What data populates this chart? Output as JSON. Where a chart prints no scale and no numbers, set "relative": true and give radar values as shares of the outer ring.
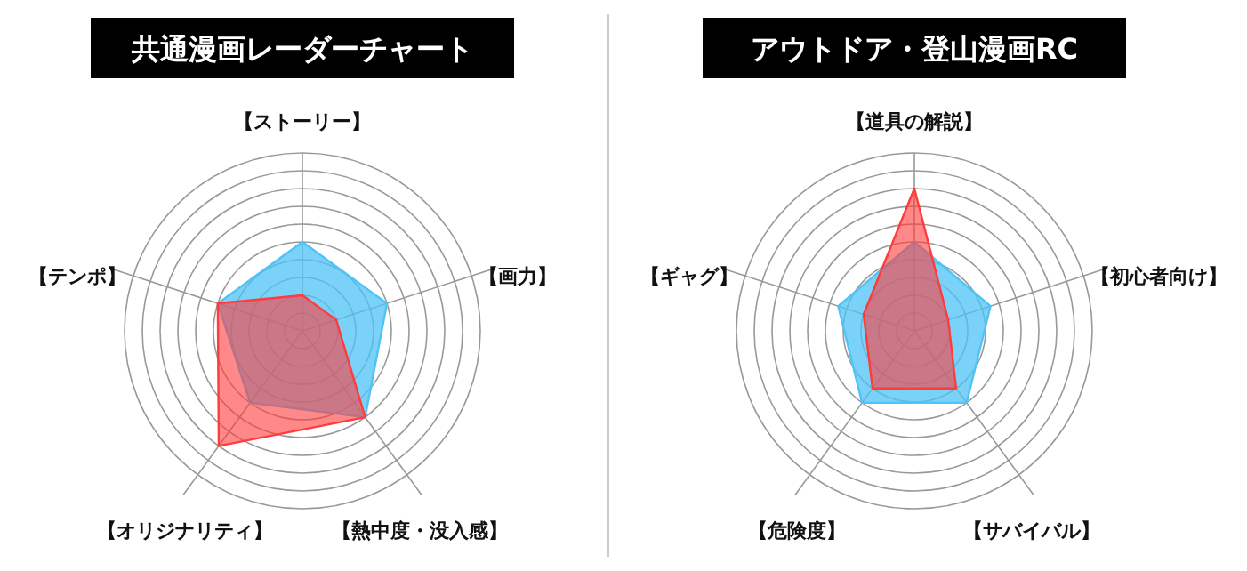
{
  "chart_data": [
    {
      "type": "radar",
      "title": "共通漫画レーダーチャート",
      "relative": true,
      "grid": true,
      "categories": [
        "【ストーリー】",
        "【画力】",
        "【熱中度・没入感】",
        "【オリジナリティ】",
        "【テンポ】"
      ],
      "series": [
        {
          "color": "#4fc3f7",
          "values": [
            0.5,
            0.5,
            0.6,
            0.5,
            0.5
          ]
        },
        {
          "color": "#ff3b3b",
          "values": [
            0.2,
            0.2,
            0.6,
            0.8,
            0.5
          ]
        }
      ]
    },
    {
      "type": "radar",
      "title": "アウトドア・登山漫画RC",
      "relative": true,
      "grid": true,
      "categories": [
        "【道具の解説】",
        "【初心者向け】",
        "【サバイバル】",
        "【危険度】",
        "【ギャグ】"
      ],
      "series": [
        {
          "color": "#4fc3f7",
          "values": [
            0.5,
            0.45,
            0.5,
            0.5,
            0.45
          ]
        },
        {
          "color": "#ff3b3b",
          "values": [
            0.8,
            0.2,
            0.4,
            0.4,
            0.3
          ]
        }
      ]
    }
  ]
}
